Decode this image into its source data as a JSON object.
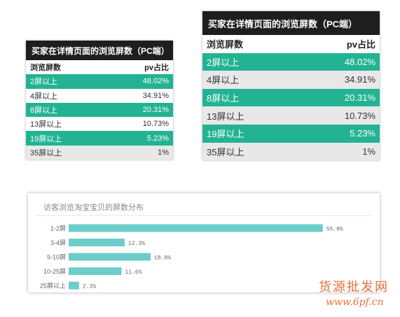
{
  "tables": [
    {
      "id": "small",
      "title": "买家在详情页面的浏览屏数（PC端）",
      "header": {
        "col1": "浏览屏数",
        "col2": "pv占比"
      },
      "rows": [
        {
          "label": "2屏以上",
          "value": "48.02%"
        },
        {
          "label": "4屏以上",
          "value": "34.91%"
        },
        {
          "label": "8屏以上",
          "value": "20.31%"
        },
        {
          "label": "13屏以上",
          "value": "10.73%"
        },
        {
          "label": "19屏以上",
          "value": "5.23%"
        },
        {
          "label": "35屏以上",
          "value": "1%"
        }
      ]
    },
    {
      "id": "large",
      "title": "买家在详情页面的浏览屏数（PC端）",
      "header": {
        "col1": "浏览屏数",
        "col2": "pv占比"
      },
      "rows": [
        {
          "label": "2屏以上",
          "value": "48.02%"
        },
        {
          "label": "4屏以上",
          "value": "34.91%"
        },
        {
          "label": "8屏以上",
          "value": "20.31%"
        },
        {
          "label": "13屏以上",
          "value": "10.73%"
        },
        {
          "label": "19屏以上",
          "value": "5.23%"
        },
        {
          "label": "35屏以上",
          "value": "1%"
        }
      ]
    }
  ],
  "colors": {
    "green": "#23b393",
    "gray": "#e8e8e8",
    "bar": "#6dcdca",
    "title_bg": "#1e1e1e",
    "watermark": "#e8703a"
  },
  "chart_data": {
    "type": "bar",
    "orientation": "horizontal",
    "title": "访客浏览淘宝宝贝的屏数分布",
    "categories": [
      "1-2屏",
      "3-4屏",
      "5-10屏",
      "10-25屏",
      "25屏以上"
    ],
    "values": [
      55.8,
      12.3,
      18.0,
      11.6,
      2.3
    ],
    "value_labels": [
      "55.8%",
      "12.3%",
      "18.0%",
      "11.6%",
      "2.3%"
    ],
    "xlim": [
      0,
      60
    ],
    "grid": false,
    "legend": "none"
  },
  "watermark": {
    "line1": "货源批发网",
    "line2": "www.6pf.cn"
  }
}
